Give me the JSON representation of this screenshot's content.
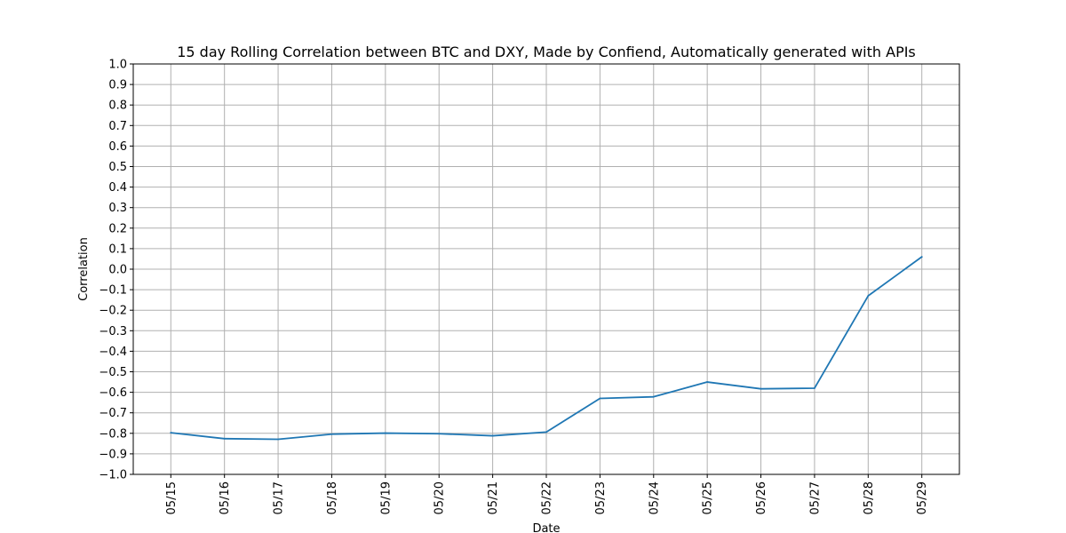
{
  "chart_data": {
    "type": "line",
    "title": "15 day Rolling Correlation between BTC and DXY, Made by Confiend, Automatically generated with APIs",
    "xlabel": "Date",
    "ylabel": "Correlation",
    "categories": [
      "05/15",
      "05/16",
      "05/17",
      "05/18",
      "05/19",
      "05/20",
      "05/21",
      "05/22",
      "05/23",
      "05/24",
      "05/25",
      "05/26",
      "05/27",
      "05/28",
      "05/29"
    ],
    "series": [
      {
        "values": [
          -0.797,
          -0.826,
          -0.829,
          -0.804,
          -0.799,
          -0.802,
          -0.812,
          -0.794,
          -0.63,
          -0.622,
          -0.55,
          -0.583,
          -0.58,
          -0.13,
          0.06
        ],
        "color": "#1f77b4"
      }
    ],
    "ylim": [
      -1.0,
      1.0
    ],
    "yticks": [
      "-1.0",
      "-0.9",
      "-0.8",
      "-0.7",
      "-0.6",
      "-0.5",
      "-0.4",
      "-0.3",
      "-0.2",
      "-0.1",
      "0.0",
      "0.1",
      "0.2",
      "0.3",
      "0.4",
      "0.5",
      "0.6",
      "0.7",
      "0.8",
      "0.9",
      "1.0"
    ],
    "grid": true,
    "legend": "none"
  }
}
